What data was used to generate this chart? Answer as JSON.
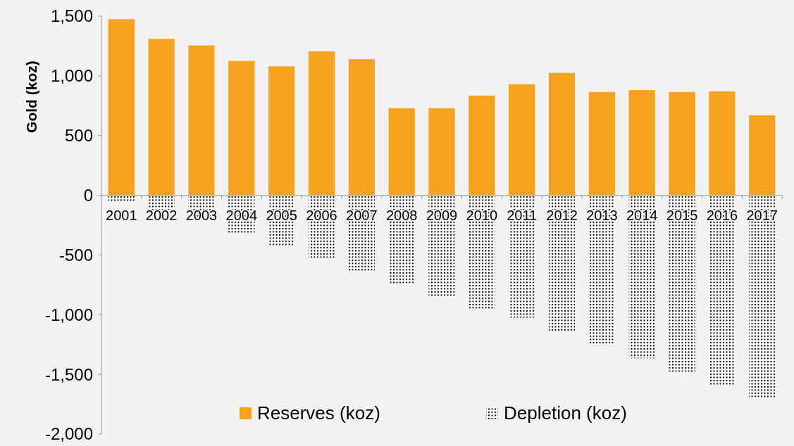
{
  "chart_data": {
    "type": "bar",
    "ylabel": "Gold (koz)",
    "categories": [
      "2001",
      "2002",
      "2003",
      "2004",
      "2005",
      "2006",
      "2007",
      "2008",
      "2009",
      "2010",
      "2011",
      "2012",
      "2013",
      "2014",
      "2015",
      "2016",
      "2017"
    ],
    "series": [
      {
        "name": "Reserves (koz)",
        "color": "#f5a31e",
        "values": [
          1475,
          1310,
          1255,
          1125,
          1080,
          1205,
          1140,
          730,
          730,
          835,
          930,
          1025,
          865,
          880,
          865,
          870,
          670
        ]
      },
      {
        "name": "Depletion (koz)",
        "color": "#000000",
        "values": [
          -60,
          -120,
          -210,
          -315,
          -420,
          -525,
          -645,
          -750,
          -855,
          -950,
          -1025,
          -1140,
          -1255,
          -1365,
          -1480,
          -1590,
          -1700
        ]
      }
    ],
    "ylim": [
      -2000,
      1500
    ],
    "yticks": [
      {
        "value": -2000,
        "label": "-2,000"
      },
      {
        "value": -1500,
        "label": "-1,500"
      },
      {
        "value": -1000,
        "label": "-1,000"
      },
      {
        "value": -500,
        "label": "-500"
      },
      {
        "value": 0,
        "label": "0"
      },
      {
        "value": 500,
        "label": "500"
      },
      {
        "value": 1000,
        "label": "1,000"
      },
      {
        "value": 1500,
        "label": "1,500"
      }
    ],
    "stacked": true,
    "grid": false,
    "legend": "bottom"
  }
}
